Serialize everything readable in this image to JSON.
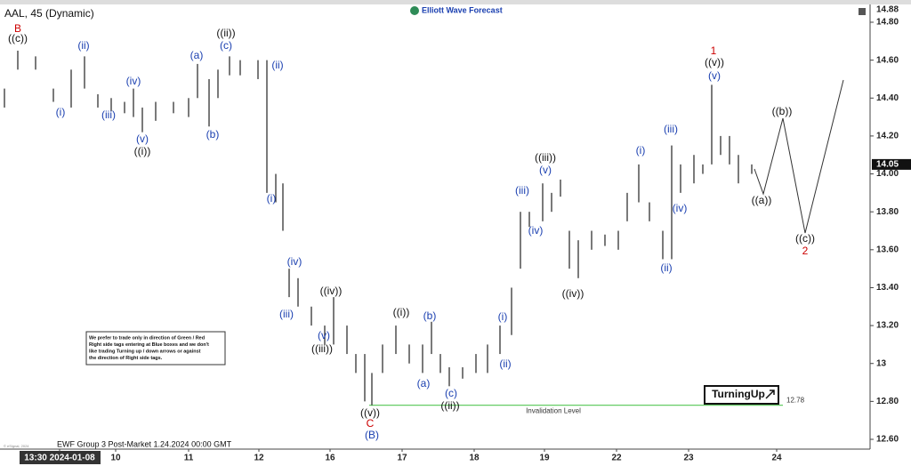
{
  "chart_data": {
    "type": "ohlc",
    "title": "AAL, 45 (Dynamic)",
    "logo": "Elliott Wave Forecast",
    "high": [
      14.45,
      14.65,
      14.62,
      14.45,
      14.55,
      14.62,
      14.42,
      14.4,
      14.38,
      14.45,
      14.35,
      14.38,
      14.38,
      14.4,
      14.58,
      14.5,
      14.55,
      14.62,
      14.6,
      14.6,
      14.6,
      14.0,
      13.95,
      13.5,
      13.45,
      13.3,
      13.2,
      13.35,
      13.2,
      13.05,
      13.05,
      12.95,
      13.1,
      13.2,
      13.1,
      13.1,
      13.22,
      13.05,
      12.98,
      12.98,
      13.05,
      13.1,
      13.2,
      13.4,
      13.8,
      13.8,
      13.95,
      13.9,
      13.97,
      13.7,
      13.65,
      13.7,
      13.68,
      13.7,
      13.9,
      14.05,
      13.85,
      13.7,
      14.15,
      14.05,
      14.1,
      14.05,
      14.47,
      14.2,
      14.2,
      14.1,
      14.05
    ],
    "low": [
      14.35,
      14.55,
      14.55,
      14.38,
      14.35,
      14.45,
      14.35,
      14.33,
      14.32,
      14.3,
      14.22,
      14.28,
      14.32,
      14.3,
      14.4,
      14.25,
      14.4,
      14.52,
      14.52,
      14.5,
      13.9,
      13.85,
      13.7,
      13.35,
      13.3,
      13.2,
      13.1,
      13.1,
      13.05,
      12.95,
      12.8,
      12.78,
      12.95,
      13.05,
      13.0,
      12.95,
      13.05,
      12.95,
      12.88,
      12.92,
      12.95,
      12.95,
      13.05,
      13.15,
      13.5,
      13.72,
      13.75,
      13.8,
      13.88,
      13.5,
      13.45,
      13.6,
      13.62,
      13.6,
      13.75,
      13.85,
      13.75,
      13.55,
      13.55,
      13.9,
      13.95,
      14.0,
      14.05,
      14.1,
      14.05,
      13.95,
      14.0
    ],
    "color": "#222222",
    "ylim": [
      12.6,
      14.8
    ],
    "yticks": [
      {
        "value": 12.6,
        "label": "12.60"
      },
      {
        "value": 12.8,
        "label": "12.80"
      },
      13,
      {
        "value": 13.2,
        "label": "13.20"
      },
      {
        "value": 13.4,
        "label": "13.40"
      },
      {
        "value": 13.6,
        "label": "13.60"
      },
      {
        "value": 13.8,
        "label": "13.80"
      },
      {
        "value": 14,
        "label": "14.00"
      },
      {
        "value": 14.2,
        "label": "14.20"
      },
      {
        "value": 14.4,
        "label": "14.40"
      },
      {
        "value": 14.6,
        "label": "14.60"
      },
      {
        "value": 14.8,
        "label": "14.80"
      }
    ],
    "price_labels": [
      {
        "value": 14.88,
        "label": "14.88"
      },
      {
        "value": 14.05,
        "label": "14.05"
      }
    ],
    "categories": [
      "13:30 2024-01-08",
      "10",
      "11",
      "12",
      "16",
      "17",
      "18",
      "19",
      "22",
      "23",
      "24"
    ],
    "invalidation": {
      "value": 12.78,
      "label": "Invalidation Level",
      "color": "#66cc66"
    },
    "wave_labels": [
      {
        "text": "B",
        "color": "#cc0000"
      },
      {
        "text": "((c))",
        "color": "#111111"
      },
      {
        "text": "(i)",
        "color": "#1a3fb0"
      },
      {
        "text": "(ii)",
        "color": "#1a3fb0"
      },
      {
        "text": "(iii)",
        "color": "#1a3fb0"
      },
      {
        "text": "(iv)",
        "color": "#1a3fb0"
      },
      {
        "text": "(v)",
        "color": "#1a3fb0"
      },
      {
        "text": "((i))",
        "color": "#111111"
      },
      {
        "text": "(a)",
        "color": "#1a3fb0"
      },
      {
        "text": "(b)",
        "color": "#1a3fb0"
      },
      {
        "text": "((ii))",
        "color": "#111111"
      },
      {
        "text": "(c)",
        "color": "#1a3fb0"
      },
      {
        "text": "(ii)",
        "color": "#1a3fb0"
      },
      {
        "text": "(i)",
        "color": "#1a3fb0"
      },
      {
        "text": "(iv)",
        "color": "#1a3fb0"
      },
      {
        "text": "(iii)",
        "color": "#1a3fb0"
      },
      {
        "text": "(v)",
        "color": "#1a3fb0"
      },
      {
        "text": "((iii))",
        "color": "#111111"
      },
      {
        "text": "((iv))",
        "color": "#111111"
      },
      {
        "text": "((i))",
        "color": "#111111"
      },
      {
        "text": "(b)",
        "color": "#1a3fb0"
      },
      {
        "text": "(a)",
        "color": "#1a3fb0"
      },
      {
        "text": "(c)",
        "color": "#1a3fb0"
      },
      {
        "text": "((ii))",
        "color": "#111111"
      },
      {
        "text": "((v))",
        "color": "#111111"
      },
      {
        "text": "C",
        "color": "#cc0000"
      },
      {
        "text": "(B)",
        "color": "#1a3fb0"
      },
      {
        "text": "(i)",
        "color": "#1a3fb0"
      },
      {
        "text": "(ii)",
        "color": "#1a3fb0"
      },
      {
        "text": "(iii)",
        "color": "#1a3fb0"
      },
      {
        "text": "(iv)",
        "color": "#1a3fb0"
      },
      {
        "text": "((iii))",
        "color": "#111111"
      },
      {
        "text": "(v)",
        "color": "#1a3fb0"
      },
      {
        "text": "((iv))",
        "color": "#111111"
      },
      {
        "text": "(i)",
        "color": "#1a3fb0"
      },
      {
        "text": "(ii)",
        "color": "#1a3fb0"
      },
      {
        "text": "(iii)",
        "color": "#1a3fb0"
      },
      {
        "text": "(iv)",
        "color": "#1a3fb0"
      },
      {
        "text": "1",
        "color": "#cc0000"
      },
      {
        "text": "((v))",
        "color": "#111111"
      },
      {
        "text": "(v)",
        "color": "#1a3fb0"
      },
      {
        "text": "((b))",
        "color": "#111111"
      },
      {
        "text": "((a))",
        "color": "#111111"
      },
      {
        "text": "((c))",
        "color": "#111111"
      },
      {
        "text": "2",
        "color": "#cc0000"
      }
    ],
    "note": [
      "We prefer to trade only in direction of Green / Red",
      "Right side tags entering at Blue boxes and we don't",
      "like trading Turning up / down arrows or against",
      "the direction of Right side tags."
    ],
    "badge": "TurningUp",
    "footer": "EWF Group 3 Post-Market 1.24.2024 00:00 GMT",
    "copyright": "© eSignal, 2024"
  }
}
